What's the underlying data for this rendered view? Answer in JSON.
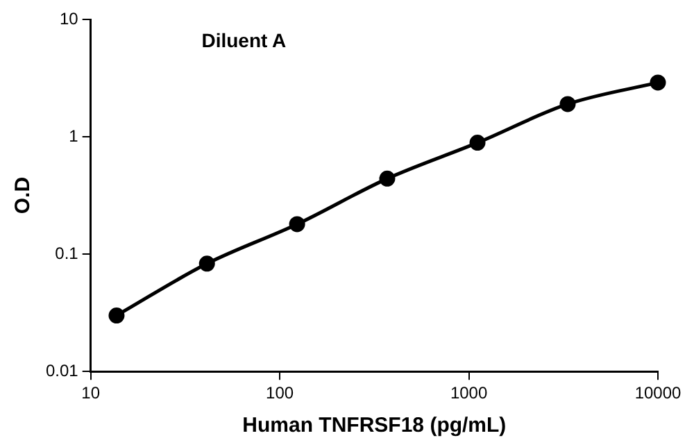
{
  "chart_data": {
    "type": "line",
    "title": "Diluent A",
    "xlabel": "Human TNFRSF18 (pg/mL)",
    "ylabel": "O.D",
    "x": [
      13.7,
      41.2,
      123.5,
      370,
      1111,
      3333,
      10000
    ],
    "series": [
      {
        "color": "#000000",
        "values": [
          0.03,
          0.083,
          0.18,
          0.44,
          0.89,
          1.9,
          2.9
        ]
      }
    ],
    "log": "xy",
    "xlim": [
      10,
      10000
    ],
    "xticks": [
      10,
      100,
      1000,
      10000
    ],
    "ylim": [
      0.01,
      10
    ],
    "yticks": [
      0.01,
      0.1,
      1,
      10
    ],
    "grid": false,
    "legend": false,
    "marker": "circle",
    "line_style": "solid"
  }
}
